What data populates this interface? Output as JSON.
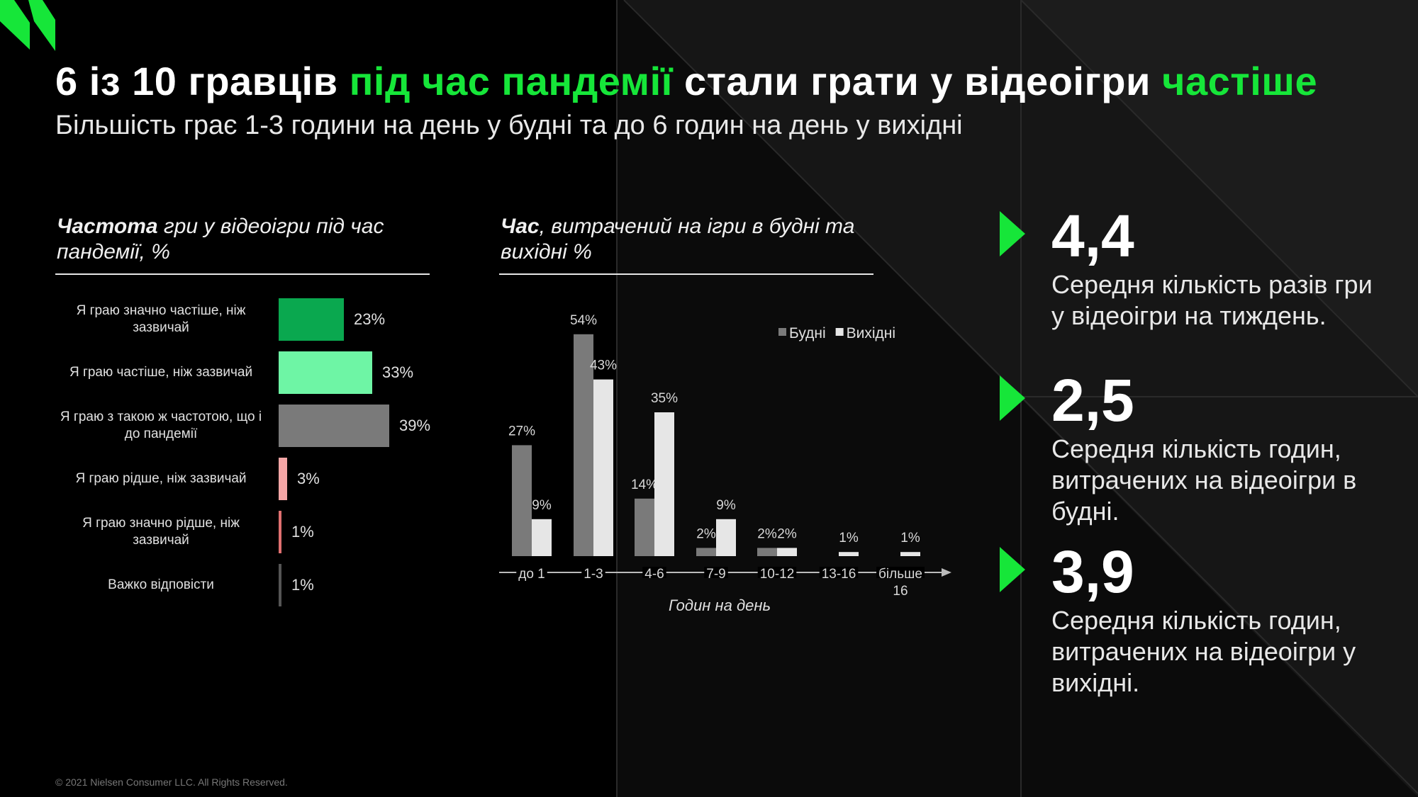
{
  "title": {
    "part1": "6 із 10 гравців ",
    "part2": "під час пандемії",
    "part3": " стали грати у відеоігри ",
    "part4": "частіше"
  },
  "subtitle": "Більшість грає 1-3 години на день у будні та до 6 годин на день у вихідні",
  "left_chart_title": {
    "bold": "Частота",
    "rest": " гри у відеоігри під час пандемії, %"
  },
  "right_chart_title": {
    "bold": "Час",
    "rest": ", витрачений на ігри в будні та вихідні %"
  },
  "colors": {
    "accent": "#16e639",
    "weekday": "#7a7a7a",
    "weekend": "#e6e6e6"
  },
  "chart_data": [
    {
      "type": "bar",
      "orientation": "horizontal",
      "categories": [
        "Я граю значно частіше, ніж зазвичай",
        "Я граю частіше, ніж зазвичай",
        "Я граю з такою ж частотою, що і до пандемії",
        "Я граю рідше, ніж зазвичай",
        "Я граю значно рідше, ніж зазвичай",
        "Важко відповісти"
      ],
      "values": [
        23,
        33,
        39,
        3,
        1,
        1
      ],
      "value_labels": [
        "23%",
        "33%",
        "39%",
        "3%",
        "1%",
        "1%"
      ],
      "bar_colors": [
        "#0aa84f",
        "#6ef5a5",
        "#7a7a7a",
        "#f4a6a6",
        "#e07070",
        "#555555"
      ],
      "title": "Частота гри у відеоігри під час пандемії, %"
    },
    {
      "type": "bar",
      "categories": [
        "до 1",
        "1-3",
        "4-6",
        "7-9",
        "10-12",
        "13-16",
        "більше 16"
      ],
      "series": [
        {
          "name": "Будні",
          "values": [
            27,
            54,
            14,
            2,
            2,
            0,
            0
          ],
          "labels": [
            "27%",
            "54%",
            "14%",
            "2%",
            "2%",
            "",
            ""
          ]
        },
        {
          "name": "Вихідні",
          "values": [
            9,
            43,
            35,
            9,
            2,
            1,
            1
          ],
          "labels": [
            "9%",
            "43%",
            "35%",
            "9%",
            "2%",
            "1%",
            "1%"
          ]
        }
      ],
      "xlabel": "Годин на день",
      "legend": "top-right",
      "title": "Час, витрачений на ігри в будні та вихідні %"
    }
  ],
  "stats": [
    {
      "value": "4,4",
      "desc": "Середня кількість разів гри у відеоігри на тиждень."
    },
    {
      "value": "2,5",
      "desc": "Середня кількість годин, витрачених на відеоігри в будні."
    },
    {
      "value": "3,9",
      "desc": "Середня кількість годин, витрачених на відеоігри у вихідні."
    }
  ],
  "footer": "© 2021 Nielsen Consumer LLC. All Rights Reserved."
}
